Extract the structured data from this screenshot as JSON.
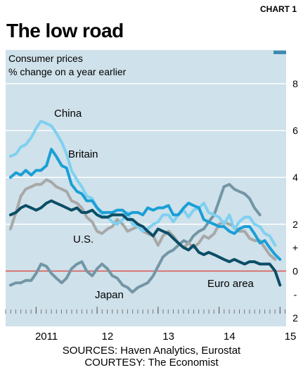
{
  "header": {
    "chart_label": "CHART 1",
    "title": "The low road"
  },
  "footer": {
    "sources": "SOURCES: Haven Analytics, Eurostat",
    "courtesy": "COURTESY: The Economist"
  },
  "chart_data": {
    "type": "line",
    "title": "The low road",
    "subtitle_lines": [
      "Consumer prices",
      "% change on a year earlier"
    ],
    "ylim": [
      -2,
      8
    ],
    "yticks": [
      {
        "value": 8,
        "label": "8"
      },
      {
        "value": 6,
        "label": "6"
      },
      {
        "value": 4,
        "label": "4"
      },
      {
        "value": 2,
        "label": "2"
      },
      {
        "value": 1,
        "label": "+"
      },
      {
        "value": 0,
        "label": "0"
      },
      {
        "value": -1,
        "label": "-"
      },
      {
        "value": -2,
        "label": "2"
      }
    ],
    "xlim": [
      2010.5,
      2015.1
    ],
    "xticks": [
      {
        "value": 2011,
        "label": "2011"
      },
      {
        "value": 2012,
        "label": "12"
      },
      {
        "value": 2013,
        "label": "13"
      },
      {
        "value": 2014,
        "label": "14"
      },
      {
        "value": 2015,
        "label": "15"
      }
    ],
    "grid": true,
    "legend": "inline labels",
    "colors": {
      "background": "#cfe1ea",
      "grid": "#ffffff",
      "zero_line": "#d9534f",
      "china": "#7fd0f0",
      "britain": "#1a9fd6",
      "us": "#a8a8a8",
      "euro_area": "#0b4d66",
      "japan": "#7396a6"
    },
    "series": [
      {
        "name": "China",
        "color_key": "china",
        "x": [
          2010.58,
          2010.67,
          2010.75,
          2010.83,
          2010.92,
          2011.0,
          2011.08,
          2011.17,
          2011.25,
          2011.33,
          2011.42,
          2011.5,
          2011.58,
          2011.67,
          2011.75,
          2011.83,
          2011.92,
          2012.0,
          2012.08,
          2012.17,
          2012.25,
          2012.33,
          2012.42,
          2012.5,
          2012.58,
          2012.67,
          2012.75,
          2012.83,
          2012.92,
          2013.0,
          2013.08,
          2013.17,
          2013.25,
          2013.33,
          2013.42,
          2013.5,
          2013.58,
          2013.67,
          2013.75,
          2013.83,
          2013.92,
          2014.0,
          2014.08,
          2014.17,
          2014.25,
          2014.33,
          2014.42,
          2014.5,
          2014.58,
          2014.67,
          2014.75,
          2014.83,
          2014.92
        ],
        "values": [
          4.9,
          5.0,
          5.3,
          5.4,
          5.7,
          6.1,
          6.4,
          6.3,
          6.2,
          5.9,
          5.5,
          5.0,
          4.3,
          3.9,
          3.6,
          3.2,
          3.1,
          2.7,
          2.4,
          2.3,
          2.1,
          2.0,
          2.2,
          2.5,
          2.0,
          1.9,
          1.7,
          1.8,
          2.0,
          2.1,
          2.4,
          2.4,
          2.1,
          2.4,
          2.6,
          2.3,
          2.6,
          2.7,
          2.9,
          2.5,
          2.4,
          2.3,
          2.0,
          2.4,
          1.8,
          2.1,
          2.3,
          2.3,
          2.0,
          1.9,
          1.6,
          1.5,
          1.1
        ]
      },
      {
        "name": "Britain",
        "color_key": "britain",
        "x": [
          2010.58,
          2010.67,
          2010.75,
          2010.83,
          2010.92,
          2011.0,
          2011.08,
          2011.17,
          2011.25,
          2011.33,
          2011.42,
          2011.5,
          2011.58,
          2011.67,
          2011.75,
          2011.83,
          2011.92,
          2012.0,
          2012.08,
          2012.17,
          2012.25,
          2012.33,
          2012.42,
          2012.5,
          2012.58,
          2012.67,
          2012.75,
          2012.83,
          2012.92,
          2013.0,
          2013.08,
          2013.17,
          2013.25,
          2013.33,
          2013.42,
          2013.5,
          2013.58,
          2013.67,
          2013.75,
          2013.83,
          2013.92,
          2014.0,
          2014.08,
          2014.17,
          2014.25,
          2014.33,
          2014.42,
          2014.5,
          2014.58,
          2014.67,
          2014.75,
          2014.83,
          2014.92,
          2015.0
        ],
        "values": [
          4.0,
          4.2,
          4.1,
          4.3,
          4.1,
          4.3,
          4.3,
          4.5,
          5.2,
          4.9,
          4.5,
          4.4,
          3.7,
          3.4,
          3.3,
          3.0,
          3.0,
          2.7,
          2.5,
          2.5,
          2.5,
          2.6,
          2.6,
          2.4,
          2.5,
          2.5,
          2.4,
          2.7,
          2.6,
          2.7,
          2.7,
          2.8,
          2.4,
          2.4,
          2.7,
          2.9,
          2.8,
          2.7,
          2.2,
          2.1,
          2.0,
          1.9,
          1.9,
          1.7,
          1.6,
          1.8,
          1.9,
          1.9,
          1.6,
          1.2,
          1.3,
          1.0,
          0.7,
          0.5
        ]
      },
      {
        "name": "U.S.",
        "color_key": "us",
        "x": [
          2010.58,
          2010.67,
          2010.75,
          2010.83,
          2010.92,
          2011.0,
          2011.08,
          2011.17,
          2011.25,
          2011.33,
          2011.42,
          2011.5,
          2011.58,
          2011.67,
          2011.75,
          2011.83,
          2011.92,
          2012.0,
          2012.08,
          2012.17,
          2012.25,
          2012.33,
          2012.42,
          2012.5,
          2012.58,
          2012.67,
          2012.75,
          2012.83,
          2012.92,
          2013.0,
          2013.08,
          2013.17,
          2013.25,
          2013.33,
          2013.42,
          2013.5,
          2013.58,
          2013.67,
          2013.75,
          2013.83,
          2013.92,
          2014.0,
          2014.08,
          2014.17,
          2014.25,
          2014.33,
          2014.42,
          2014.5,
          2014.58,
          2014.67,
          2014.75,
          2014.83,
          2014.92
        ],
        "values": [
          1.8,
          2.5,
          3.2,
          3.5,
          3.6,
          3.7,
          3.7,
          3.9,
          3.8,
          3.6,
          3.5,
          3.4,
          3.0,
          2.9,
          2.7,
          2.3,
          2.1,
          1.7,
          1.6,
          1.8,
          1.9,
          2.2,
          2.0,
          1.7,
          1.8,
          1.9,
          1.7,
          1.6,
          1.5,
          1.1,
          1.5,
          1.7,
          1.5,
          1.2,
          1.0,
          1.2,
          1.0,
          1.2,
          1.5,
          1.4,
          1.6,
          2.0,
          2.1,
          2.0,
          1.9,
          1.7,
          1.7,
          1.4,
          1.3,
          1.3,
          1.0,
          0.7,
          0.5
        ]
      },
      {
        "name": "Euro area",
        "color_key": "euro_area",
        "x": [
          2010.58,
          2010.67,
          2010.75,
          2010.83,
          2010.92,
          2011.0,
          2011.08,
          2011.17,
          2011.25,
          2011.33,
          2011.42,
          2011.5,
          2011.58,
          2011.67,
          2011.75,
          2011.83,
          2011.92,
          2012.0,
          2012.08,
          2012.17,
          2012.25,
          2012.33,
          2012.42,
          2012.5,
          2012.58,
          2012.67,
          2012.75,
          2012.83,
          2012.92,
          2013.0,
          2013.08,
          2013.17,
          2013.25,
          2013.33,
          2013.42,
          2013.5,
          2013.58,
          2013.67,
          2013.75,
          2013.83,
          2013.92,
          2014.0,
          2014.08,
          2014.17,
          2014.25,
          2014.33,
          2014.42,
          2014.5,
          2014.58,
          2014.67,
          2014.75,
          2014.83,
          2014.92,
          2015.0
        ],
        "values": [
          2.4,
          2.5,
          2.7,
          2.8,
          2.7,
          2.6,
          2.7,
          2.9,
          3.0,
          2.9,
          2.8,
          2.7,
          2.6,
          2.7,
          2.5,
          2.5,
          2.6,
          2.4,
          2.3,
          2.3,
          2.4,
          2.4,
          2.4,
          2.2,
          2.2,
          2.0,
          1.9,
          1.7,
          1.5,
          1.8,
          1.7,
          1.6,
          1.4,
          1.2,
          1.0,
          0.9,
          1.1,
          0.8,
          0.7,
          0.8,
          0.7,
          0.6,
          0.5,
          0.4,
          0.5,
          0.4,
          0.3,
          0.4,
          0.4,
          0.3,
          0.3,
          0.3,
          0.0,
          -0.6
        ]
      },
      {
        "name": "Japan",
        "color_key": "japan",
        "x": [
          2010.58,
          2010.67,
          2010.75,
          2010.83,
          2010.92,
          2011.0,
          2011.08,
          2011.17,
          2011.25,
          2011.33,
          2011.42,
          2011.5,
          2011.58,
          2011.67,
          2011.75,
          2011.83,
          2011.92,
          2012.0,
          2012.08,
          2012.17,
          2012.25,
          2012.33,
          2012.42,
          2012.5,
          2012.58,
          2012.67,
          2012.75,
          2012.83,
          2012.92,
          2013.0,
          2013.08,
          2013.17,
          2013.25,
          2013.33,
          2013.42,
          2013.5,
          2013.58,
          2013.67,
          2013.75,
          2013.83,
          2013.92,
          2014.0,
          2014.08,
          2014.17,
          2014.25,
          2014.33,
          2014.42,
          2014.5,
          2014.58,
          2014.67
        ],
        "values": [
          -0.6,
          -0.5,
          -0.5,
          -0.4,
          -0.4,
          -0.1,
          0.3,
          0.2,
          -0.1,
          -0.3,
          -0.5,
          -0.3,
          0.1,
          0.3,
          0.4,
          0.0,
          -0.2,
          0.1,
          0.3,
          0.1,
          -0.2,
          -0.3,
          -0.6,
          -0.7,
          -0.9,
          -0.7,
          -0.6,
          -0.5,
          -0.2,
          0.2,
          0.6,
          0.8,
          0.9,
          1.1,
          1.3,
          1.2,
          1.5,
          1.7,
          1.8,
          2.1,
          2.4,
          3.0,
          3.6,
          3.7,
          3.5,
          3.4,
          3.3,
          3.1,
          2.7,
          2.4
        ]
      }
    ],
    "annotations": [
      {
        "text": "China",
        "series": "China"
      },
      {
        "text": "Britain",
        "series": "Britain"
      },
      {
        "text": "U.S.",
        "series": "U.S."
      },
      {
        "text": "Euro area",
        "series": "Euro area"
      },
      {
        "text": "Japan",
        "series": "Japan"
      }
    ]
  }
}
